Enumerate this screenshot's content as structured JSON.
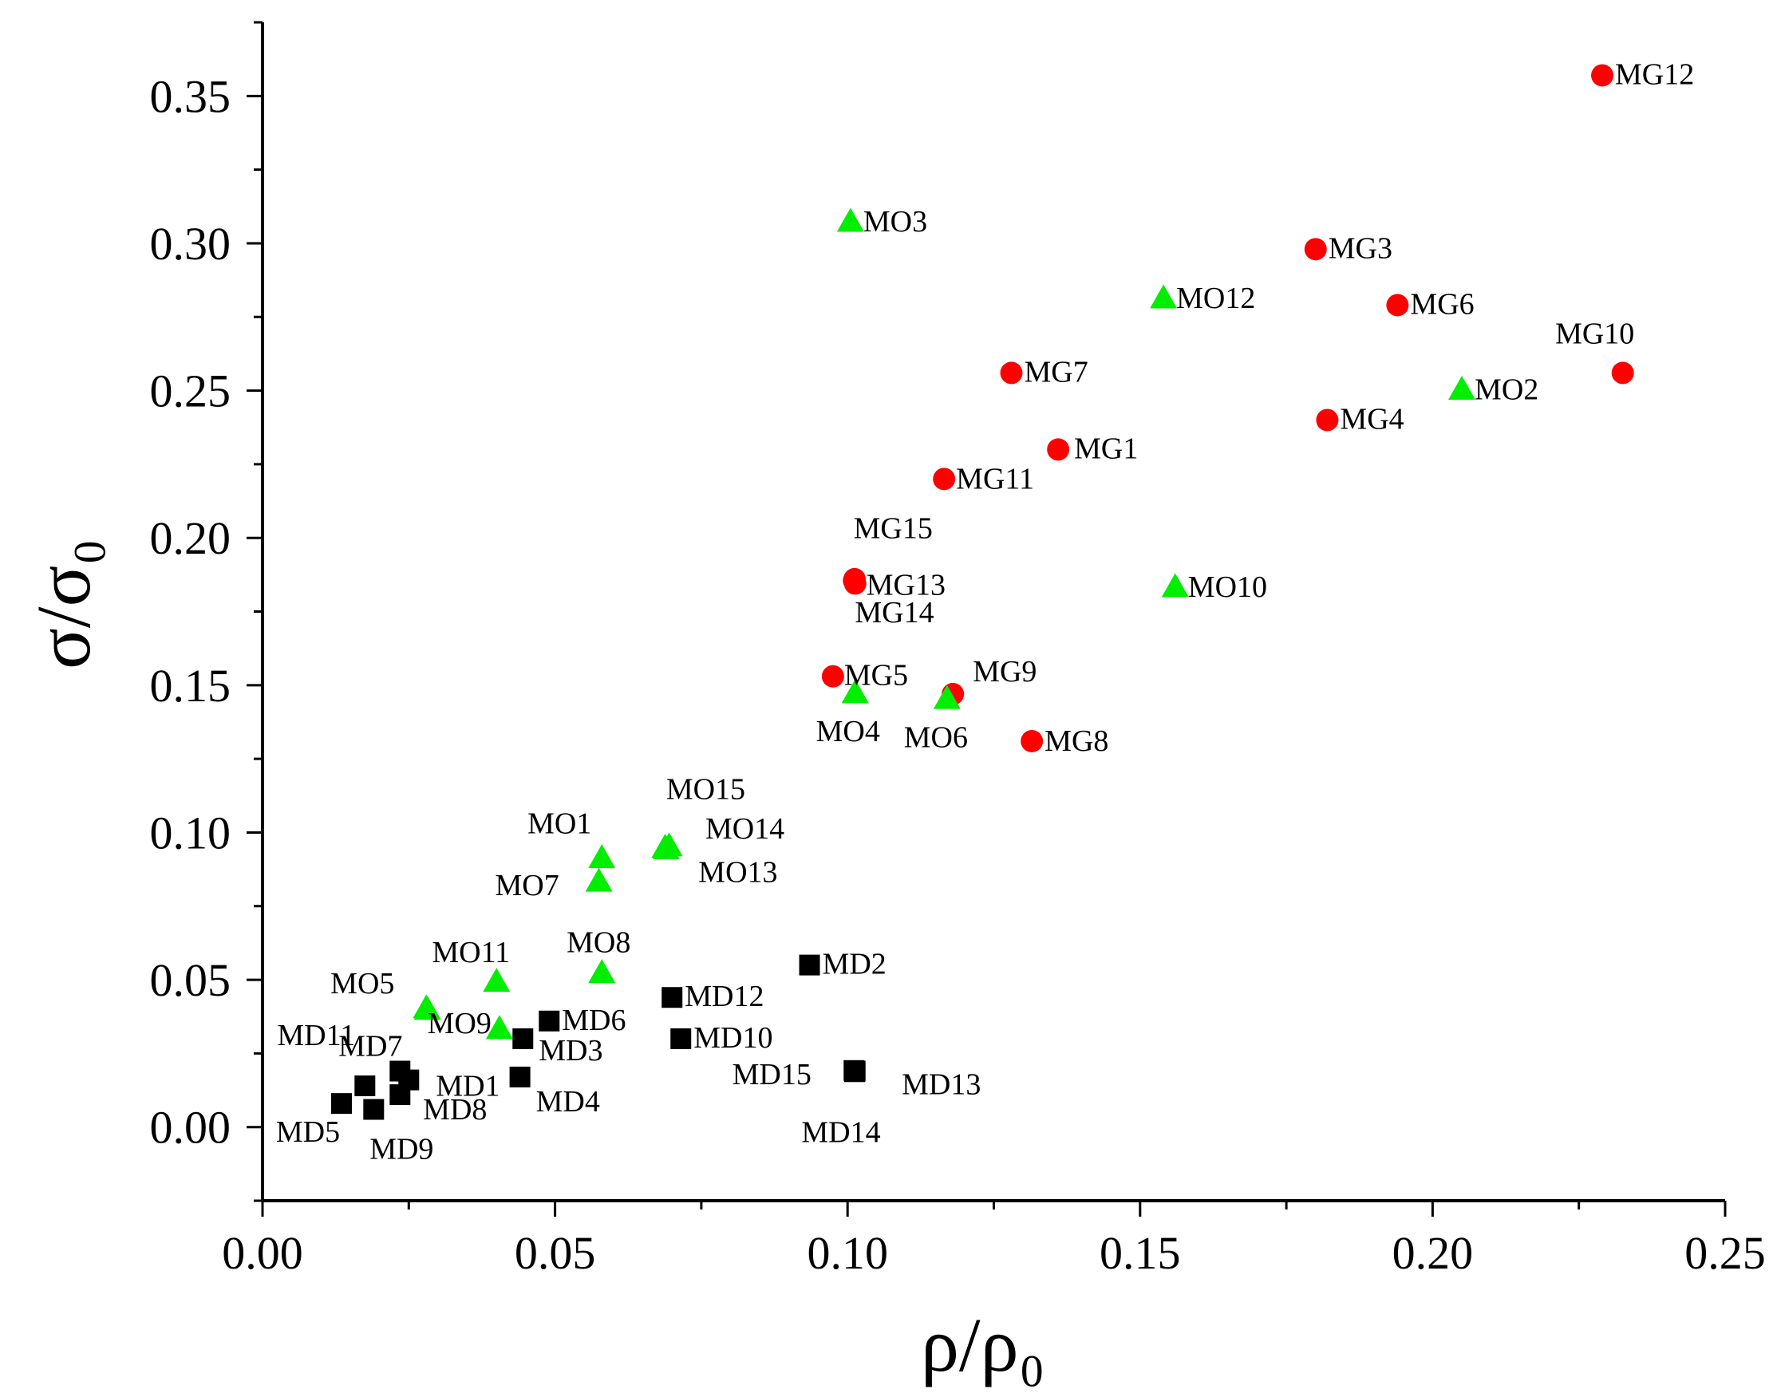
{
  "chart_data": {
    "type": "scatter",
    "title": "",
    "xlabel": "ρ/ρ₀",
    "ylabel": "σ/σ₀",
    "xlim": [
      0,
      0.25
    ],
    "ylim": [
      -0.025,
      0.375
    ],
    "x_ticks": [
      0.0,
      0.05,
      0.1,
      0.15,
      0.2,
      0.25
    ],
    "x_tick_labels": [
      "0.00",
      "0.05",
      "0.10",
      "0.15",
      "0.20",
      "0.25"
    ],
    "y_ticks": [
      0.0,
      0.05,
      0.1,
      0.15,
      0.2,
      0.25,
      0.3,
      0.35
    ],
    "y_tick_labels": [
      "0.00",
      "0.05",
      "0.10",
      "0.15",
      "0.20",
      "0.25",
      "0.30",
      "0.35"
    ],
    "grid": false,
    "legend": "none",
    "series": [
      {
        "name": "MG",
        "marker": "circle",
        "color": "#ff0000",
        "points": [
          {
            "label": "MG1",
            "x": 0.136,
            "y": 0.23
          },
          {
            "label": "MG3",
            "x": 0.18,
            "y": 0.298
          },
          {
            "label": "MG4",
            "x": 0.182,
            "y": 0.24
          },
          {
            "label": "MG5",
            "x": 0.0975,
            "y": 0.153
          },
          {
            "label": "MG6",
            "x": 0.194,
            "y": 0.279
          },
          {
            "label": "MG7",
            "x": 0.128,
            "y": 0.256
          },
          {
            "label": "MG8",
            "x": 0.1315,
            "y": 0.131
          },
          {
            "label": "MG9",
            "x": 0.118,
            "y": 0.147
          },
          {
            "label": "MG10",
            "x": 0.2325,
            "y": 0.256
          },
          {
            "label": "MG11",
            "x": 0.1165,
            "y": 0.22
          },
          {
            "label": "MG12",
            "x": 0.229,
            "y": 0.357
          },
          {
            "label": "MG13",
            "x": 0.1013,
            "y": 0.1845
          },
          {
            "label": "MG14",
            "x": 0.1012,
            "y": 0.186
          },
          {
            "label": "MG15",
            "x": 0.1011,
            "y": 0.1855
          }
        ]
      },
      {
        "name": "MO",
        "marker": "triangle",
        "color": "#00ee00",
        "points": [
          {
            "label": "MO1",
            "x": 0.058,
            "y": 0.091
          },
          {
            "label": "MO2",
            "x": 0.205,
            "y": 0.25
          },
          {
            "label": "MO3",
            "x": 0.1005,
            "y": 0.307
          },
          {
            "label": "MO4",
            "x": 0.1013,
            "y": 0.147
          },
          {
            "label": "MO5",
            "x": 0.028,
            "y": 0.04
          },
          {
            "label": "MO6",
            "x": 0.117,
            "y": 0.145
          },
          {
            "label": "MO7",
            "x": 0.0575,
            "y": 0.083
          },
          {
            "label": "MO8",
            "x": 0.058,
            "y": 0.052
          },
          {
            "label": "MO9",
            "x": 0.0282,
            "y": 0.0395
          },
          {
            "label": "MO10",
            "x": 0.156,
            "y": 0.183
          },
          {
            "label": "MO11",
            "x": 0.04,
            "y": 0.049
          },
          {
            "label": "MO12",
            "x": 0.154,
            "y": 0.281
          },
          {
            "label": "MO13",
            "x": 0.069,
            "y": 0.094
          },
          {
            "label": "MO14",
            "x": 0.0695,
            "y": 0.095
          },
          {
            "label": "MO15",
            "x": 0.0688,
            "y": 0.0945
          },
          {
            "label": "",
            "x": 0.0405,
            "y": 0.033
          }
        ]
      },
      {
        "name": "MD",
        "marker": "square",
        "color": "#000000",
        "points": [
          {
            "label": "MD1",
            "x": 0.025,
            "y": 0.016
          },
          {
            "label": "MD2",
            "x": 0.0935,
            "y": 0.055
          },
          {
            "label": "MD3",
            "x": 0.0445,
            "y": 0.03
          },
          {
            "label": "MD4",
            "x": 0.044,
            "y": 0.017
          },
          {
            "label": "MD5",
            "x": 0.0135,
            "y": 0.008
          },
          {
            "label": "MD6",
            "x": 0.049,
            "y": 0.036
          },
          {
            "label": "MD7",
            "x": 0.0235,
            "y": 0.019
          },
          {
            "label": "MD8",
            "x": 0.0235,
            "y": 0.011
          },
          {
            "label": "MD9",
            "x": 0.019,
            "y": 0.006
          },
          {
            "label": "MD10",
            "x": 0.0715,
            "y": 0.03
          },
          {
            "label": "MD11",
            "x": 0.0175,
            "y": 0.014
          },
          {
            "label": "MD12",
            "x": 0.07,
            "y": 0.044
          },
          {
            "label": "MD13",
            "x": 0.1013,
            "y": 0.019
          },
          {
            "label": "MD14",
            "x": 0.1012,
            "y": 0.0188
          },
          {
            "label": "MD15",
            "x": 0.1011,
            "y": 0.0192
          }
        ]
      }
    ]
  }
}
